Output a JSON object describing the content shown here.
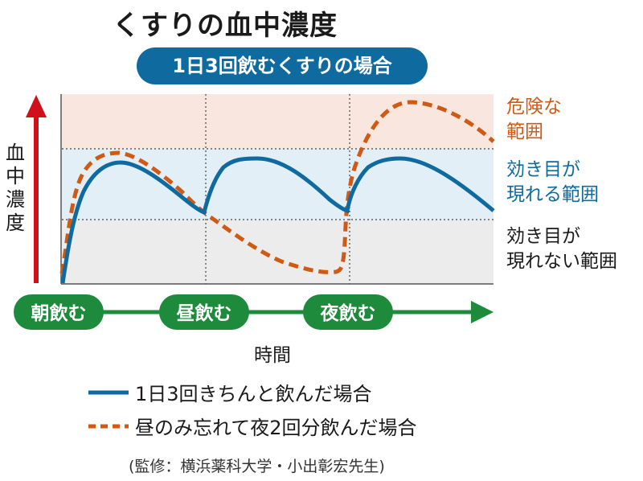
{
  "title": "くすりの血中濃度",
  "subtitle": "1日3回飲むくすりの場合",
  "chart_data": {
    "type": "line",
    "ylabel": "血中濃度",
    "xlabel": "時間",
    "zones": [
      {
        "label": "危険な\n範囲",
        "color": "#d05a14",
        "bg": "#f9e6de"
      },
      {
        "label": "効き目が\n現れる範囲",
        "color": "#0f6aa0",
        "bg": "#e3eff6"
      },
      {
        "label": "効き目が\n現れない範囲",
        "color": "#1a1a1a",
        "bg": "#ececec"
      }
    ],
    "dose_times": [
      "朝飲む",
      "昼飲む",
      "夜飲む"
    ],
    "series": [
      {
        "name": "1日3回きちんと飲んだ場合",
        "color": "#0f6aa0",
        "style": "solid"
      },
      {
        "name": "昼のみ忘れて夜2回分飲んだ場合",
        "color": "#d05a14",
        "style": "dashed"
      }
    ]
  },
  "colors": {
    "timeline_green": "#1e8a3c",
    "arrow_red": "#d0101a",
    "pill_blue": "#0f6aa0"
  },
  "source": "(監修：横浜薬科大学・小出彰宏先生)"
}
